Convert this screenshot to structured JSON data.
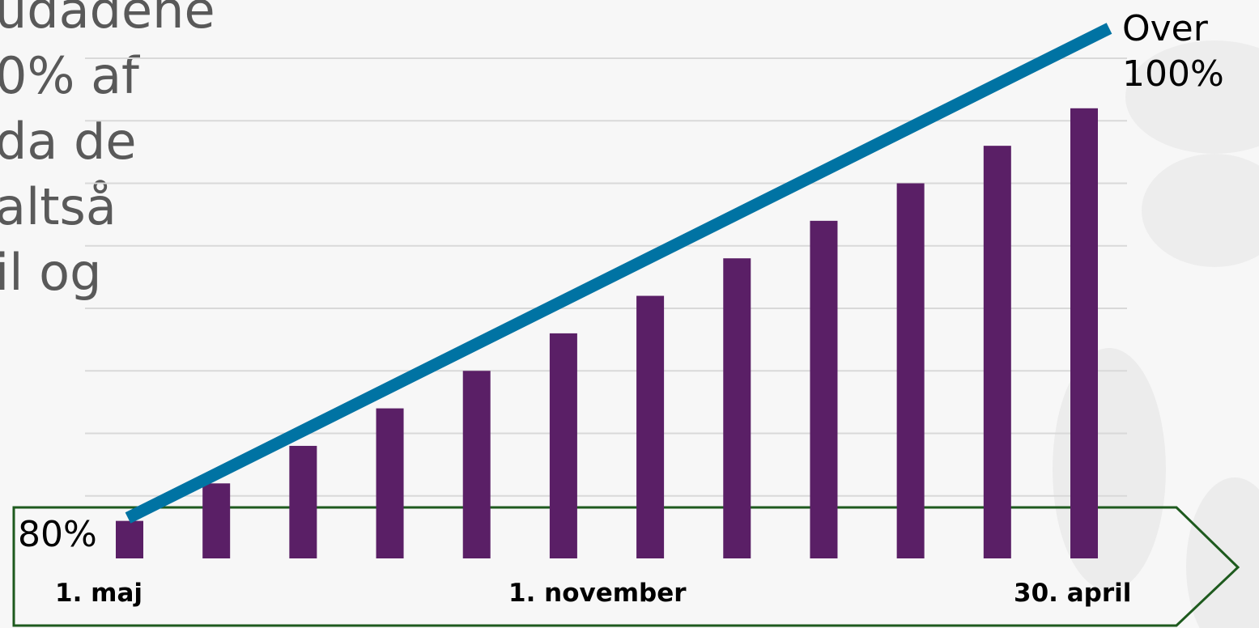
{
  "background_text": {
    "lines": [
      "udadene",
      "0% af",
      "da de",
      "",
      "altså",
      "il og"
    ]
  },
  "chart_data": {
    "type": "bar",
    "x_ticks": [
      "1. maj",
      "1. november",
      "30. april"
    ],
    "series": [
      {
        "values": [
          81.5,
          83,
          84.5,
          86,
          87.5,
          89,
          90.5,
          92,
          93.5,
          95,
          96.5,
          98
        ]
      }
    ],
    "trend_line": {
      "from": 80,
      "to": 100
    },
    "annotations": {
      "start": "80%",
      "end_line1": "Over",
      "end_line2": "100%"
    },
    "ylim": [
      80,
      100
    ],
    "grid": true,
    "colors": {
      "bars": "#5a1f66",
      "trend": "#0073a3",
      "grid": "#d9d9d9",
      "arrow": "#1e5a1e"
    }
  }
}
